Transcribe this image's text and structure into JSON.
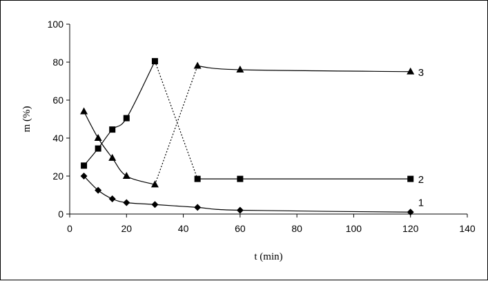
{
  "chart_data": {
    "type": "line",
    "xlabel": "t (min)",
    "ylabel": "m (%)",
    "xlim": [
      0,
      140
    ],
    "ylim": [
      0,
      100
    ],
    "xticks": [
      0,
      20,
      40,
      60,
      80,
      100,
      120,
      140
    ],
    "yticks": [
      0,
      20,
      40,
      60,
      80,
      100
    ],
    "grid": false,
    "series": [
      {
        "name": "1",
        "marker": "diamond",
        "x": [
          5,
          10,
          15,
          20,
          30,
          45,
          60,
          120
        ],
        "y": [
          20,
          12.5,
          8,
          6,
          5,
          3.5,
          2,
          1
        ]
      },
      {
        "name": "2",
        "marker": "square",
        "x": [
          5,
          10,
          15,
          20,
          30,
          45,
          60,
          120
        ],
        "y": [
          25.5,
          34.5,
          44.5,
          50.5,
          80.5,
          18.5,
          18.5,
          18.5
        ],
        "dotted_segment": [
          30,
          45
        ]
      },
      {
        "name": "3",
        "marker": "triangle",
        "x": [
          5,
          10,
          15,
          20,
          30,
          45,
          60,
          120
        ],
        "y": [
          54,
          40,
          29.5,
          20,
          15.5,
          78,
          76,
          75
        ],
        "dotted_segment": [
          30,
          45
        ]
      }
    ]
  }
}
